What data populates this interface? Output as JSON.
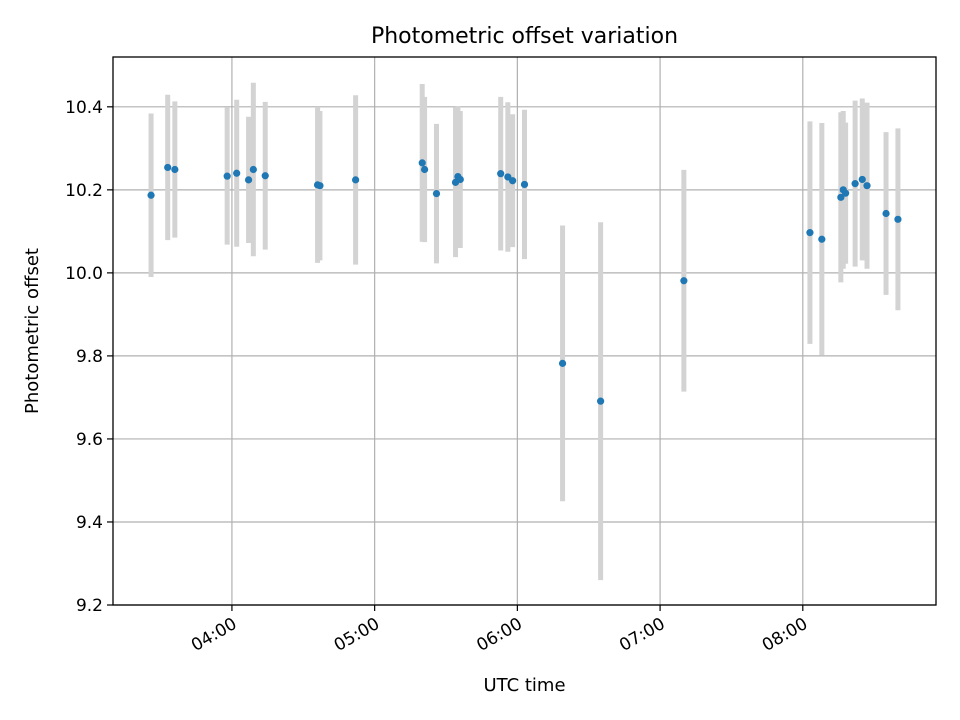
{
  "chart_data": {
    "type": "scatter",
    "title": "Photometric offset variation",
    "xlabel": "UTC time",
    "ylabel": "Photometric offset",
    "x_ticks": [
      "04:00",
      "05:00",
      "06:00",
      "07:00",
      "08:00"
    ],
    "y_ticks": [
      "9.2",
      "9.4",
      "9.6",
      "9.8",
      "10.0",
      "10.2",
      "10.4"
    ],
    "xlim": [
      "03:10",
      "08:56"
    ],
    "ylim": [
      9.2,
      10.52
    ],
    "grid": true,
    "colors": {
      "point": "#1f77b4",
      "errorbar": "#d3d3d3",
      "grid": "#b0b0b0"
    },
    "points": [
      {
        "x": "03:26",
        "y": 10.187,
        "err": 0.197
      },
      {
        "x": "03:33",
        "y": 10.254,
        "err": 0.175
      },
      {
        "x": "03:36",
        "y": 10.249,
        "err": 0.164
      },
      {
        "x": "03:58",
        "y": 10.233,
        "err": 0.165
      },
      {
        "x": "04:02",
        "y": 10.24,
        "err": 0.177
      },
      {
        "x": "04:07",
        "y": 10.224,
        "err": 0.152
      },
      {
        "x": "04:09",
        "y": 10.249,
        "err": 0.209
      },
      {
        "x": "04:14",
        "y": 10.234,
        "err": 0.178
      },
      {
        "x": "04:36",
        "y": 10.212,
        "err": 0.188
      },
      {
        "x": "04:37",
        "y": 10.21,
        "err": 0.18
      },
      {
        "x": "04:52",
        "y": 10.224,
        "err": 0.204
      },
      {
        "x": "05:20",
        "y": 10.265,
        "err": 0.19
      },
      {
        "x": "05:21",
        "y": 10.249,
        "err": 0.175
      },
      {
        "x": "05:26",
        "y": 10.191,
        "err": 0.168
      },
      {
        "x": "05:34",
        "y": 10.218,
        "err": 0.18
      },
      {
        "x": "05:35",
        "y": 10.232,
        "err": 0.17
      },
      {
        "x": "05:36",
        "y": 10.225,
        "err": 0.165
      },
      {
        "x": "05:53",
        "y": 10.239,
        "err": 0.185
      },
      {
        "x": "05:56",
        "y": 10.231,
        "err": 0.18
      },
      {
        "x": "05:58",
        "y": 10.222,
        "err": 0.16
      },
      {
        "x": "06:03",
        "y": 10.213,
        "err": 0.18
      },
      {
        "x": "06:19",
        "y": 9.782,
        "err": 0.332
      },
      {
        "x": "06:35",
        "y": 9.691,
        "err": 0.431
      },
      {
        "x": "07:10",
        "y": 9.981,
        "err": 0.267
      },
      {
        "x": "08:03",
        "y": 10.097,
        "err": 0.268
      },
      {
        "x": "08:08",
        "y": 10.081,
        "err": 0.28
      },
      {
        "x": "08:16",
        "y": 10.182,
        "err": 0.205
      },
      {
        "x": "08:17",
        "y": 10.2,
        "err": 0.19
      },
      {
        "x": "08:18",
        "y": 10.192,
        "err": 0.17
      },
      {
        "x": "08:22",
        "y": 10.215,
        "err": 0.2
      },
      {
        "x": "08:25",
        "y": 10.225,
        "err": 0.195
      },
      {
        "x": "08:27",
        "y": 10.21,
        "err": 0.2
      },
      {
        "x": "08:35",
        "y": 10.143,
        "err": 0.196
      },
      {
        "x": "08:40",
        "y": 10.129,
        "err": 0.219
      }
    ]
  }
}
